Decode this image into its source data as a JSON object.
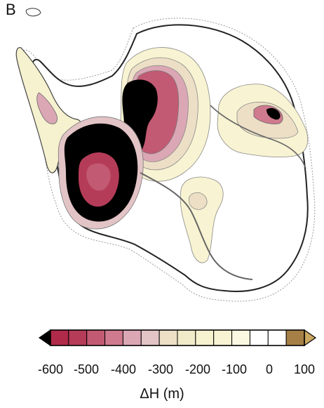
{
  "figure": {
    "panel_label": "B",
    "legend": {
      "title": "ΔH (m)",
      "tick_labels": [
        "-600",
        "-500",
        "-400",
        "-300",
        "-200",
        "-100",
        "0",
        "100"
      ],
      "extend": "both",
      "bins": [
        {
          "range": "< -600",
          "color": "#000000"
        },
        {
          "range": "-600 to -550",
          "color": "#b02a4a"
        },
        {
          "range": "-550 to -500",
          "color": "#b53c58"
        },
        {
          "range": "-500 to -450",
          "color": "#c25a73"
        },
        {
          "range": "-450 to -400",
          "color": "#cf7a8e"
        },
        {
          "range": "-400 to -350",
          "color": "#dba7b5"
        },
        {
          "range": "-350 to -300",
          "color": "#e3c4c6"
        },
        {
          "range": "-300 to -250",
          "color": "#ecdfc6"
        },
        {
          "range": "-250 to -200",
          "color": "#f2ebc9"
        },
        {
          "range": "-200 to -150",
          "color": "#f6f1ce"
        },
        {
          "range": "-150 to -100",
          "color": "#f8f3d2"
        },
        {
          "range": "-100 to -50",
          "color": "#fbf8e1"
        },
        {
          "range": "-50 to 0",
          "color": "#ffffff"
        },
        {
          "range": "0 to 50",
          "color": "#ffffff"
        },
        {
          "range": "50 to 100",
          "color": "#a57f45"
        },
        {
          "range": "> 100",
          "color": "#c9a760"
        }
      ]
    },
    "colors": {
      "coastline": "#222222",
      "grounding_line": "#666666",
      "grid_outline": "#9a9a9a",
      "background": "#ffffff"
    }
  }
}
